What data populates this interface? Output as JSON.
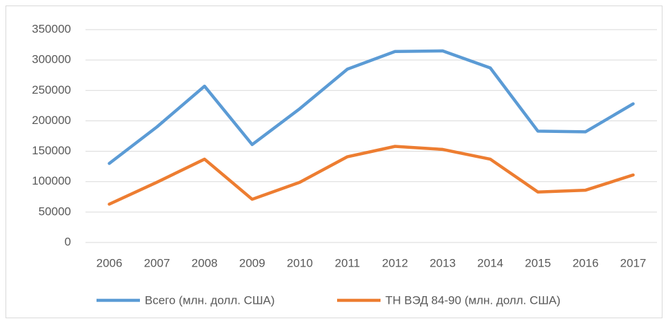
{
  "chart_data": {
    "type": "line",
    "categories": [
      "2006",
      "2007",
      "2008",
      "2009",
      "2010",
      "2011",
      "2012",
      "2013",
      "2014",
      "2015",
      "2016",
      "2017"
    ],
    "series": [
      {
        "name": "Всего (млн. долл. США)",
        "color": "#5b9bd5",
        "values": [
          130000,
          190000,
          257000,
          161000,
          220000,
          285000,
          314000,
          315000,
          287000,
          183000,
          182000,
          228000
        ]
      },
      {
        "name": "ТН ВЭД 84-90 (млн. долл. США)",
        "color": "#ed7d31",
        "values": [
          63000,
          99000,
          137000,
          71000,
          99000,
          141000,
          158000,
          153000,
          137000,
          83000,
          86000,
          111000
        ]
      }
    ],
    "ylim": [
      0,
      350000
    ],
    "yticks": [
      0,
      50000,
      100000,
      150000,
      200000,
      250000,
      300000,
      350000
    ],
    "grid": true,
    "legend": "bottom"
  }
}
